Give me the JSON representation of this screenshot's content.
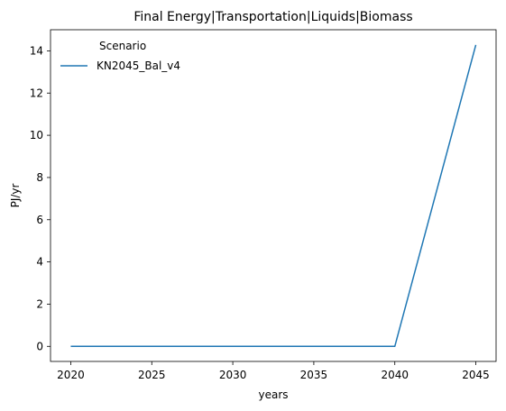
{
  "chart_data": {
    "type": "line",
    "title": "Final Energy|Transportation|Liquids|Biomass",
    "xlabel": "years",
    "ylabel": "PJ/yr",
    "x": [
      2020,
      2025,
      2030,
      2035,
      2040,
      2045
    ],
    "xticks": [
      "2020",
      "2025",
      "2030",
      "2035",
      "2040",
      "2045"
    ],
    "yticks": [
      "0",
      "2",
      "4",
      "6",
      "8",
      "10",
      "12",
      "14"
    ],
    "xlim": [
      2018.75,
      2046.25
    ],
    "ylim": [
      -0.714,
      15.0
    ],
    "grid": false,
    "legend": {
      "title": "Scenario",
      "placement": "upper left"
    },
    "series": [
      {
        "name": "KN2045_Bal_v4",
        "color": "#1f77b4",
        "values": [
          0,
          0,
          0,
          0,
          0,
          14.28
        ]
      }
    ]
  }
}
